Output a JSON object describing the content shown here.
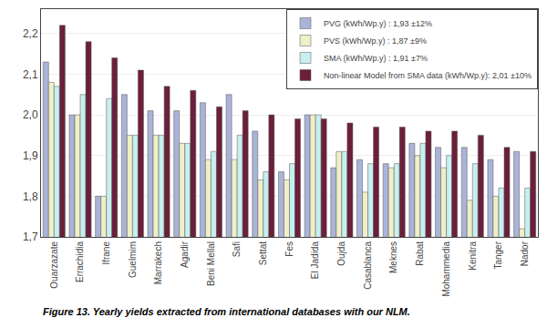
{
  "chart_data": {
    "type": "bar",
    "categories": [
      "Ouarzazate",
      "Errachidia",
      "Ifrane",
      "Guelmim",
      "Marrakech",
      "Agadir",
      "Beni Mellal",
      "Safi",
      "Settat",
      "Fes",
      "El Jadida",
      "Oujda",
      "Casablanca",
      "Meknes",
      "Rabat",
      "Mohammedia",
      "Kenitra",
      "Tanger",
      "Nador"
    ],
    "series": [
      {
        "name": "PVG (kWh/Wp.y) : 1,93 ±12%",
        "color": "#aab4d8",
        "values": [
          2.13,
          2.0,
          1.8,
          2.05,
          2.01,
          2.01,
          2.03,
          2.05,
          1.96,
          1.86,
          2.0,
          1.87,
          1.89,
          1.88,
          1.93,
          1.92,
          1.92,
          1.89,
          1.91
        ]
      },
      {
        "name": "PVS (kWh/Wp.y) : 1,87 ±9%",
        "color": "#efefc8",
        "values": [
          2.08,
          2.0,
          1.8,
          1.95,
          1.95,
          1.93,
          1.89,
          1.89,
          1.84,
          1.84,
          2.0,
          1.91,
          1.81,
          1.87,
          1.9,
          1.87,
          1.79,
          1.8,
          1.72
        ]
      },
      {
        "name": "SMA (kWh/Wp.y) : 1,91 ±7%",
        "color": "#c8efef",
        "values": [
          2.07,
          2.05,
          2.04,
          1.95,
          1.95,
          1.93,
          1.91,
          1.95,
          1.86,
          1.88,
          2.0,
          1.91,
          1.88,
          1.88,
          1.93,
          1.9,
          1.88,
          1.82,
          1.82
        ]
      },
      {
        "name": "Non-linear Model from SMA data (kWh/Wp.y): 2,01 ±10%",
        "color": "#6b1f3a",
        "values": [
          2.22,
          2.18,
          2.14,
          2.11,
          2.07,
          2.06,
          2.02,
          2.01,
          2.0,
          1.99,
          1.99,
          1.98,
          1.97,
          1.97,
          1.96,
          1.96,
          1.95,
          1.92,
          1.91
        ]
      }
    ],
    "ylim": [
      1.7,
      2.26
    ],
    "yticks": [
      {
        "value": 1.7,
        "label": "1,7"
      },
      {
        "value": 1.8,
        "label": "1,8"
      },
      {
        "value": 1.9,
        "label": "1,9"
      },
      {
        "value": 2.0,
        "label": "2,0"
      },
      {
        "value": 2.1,
        "label": "2,1"
      },
      {
        "value": 2.2,
        "label": "2,2"
      }
    ],
    "grid": true,
    "legend": "upper right",
    "annotations": [
      "Figure 13. Yearly yields extracted from international databases with our NLM."
    ]
  }
}
